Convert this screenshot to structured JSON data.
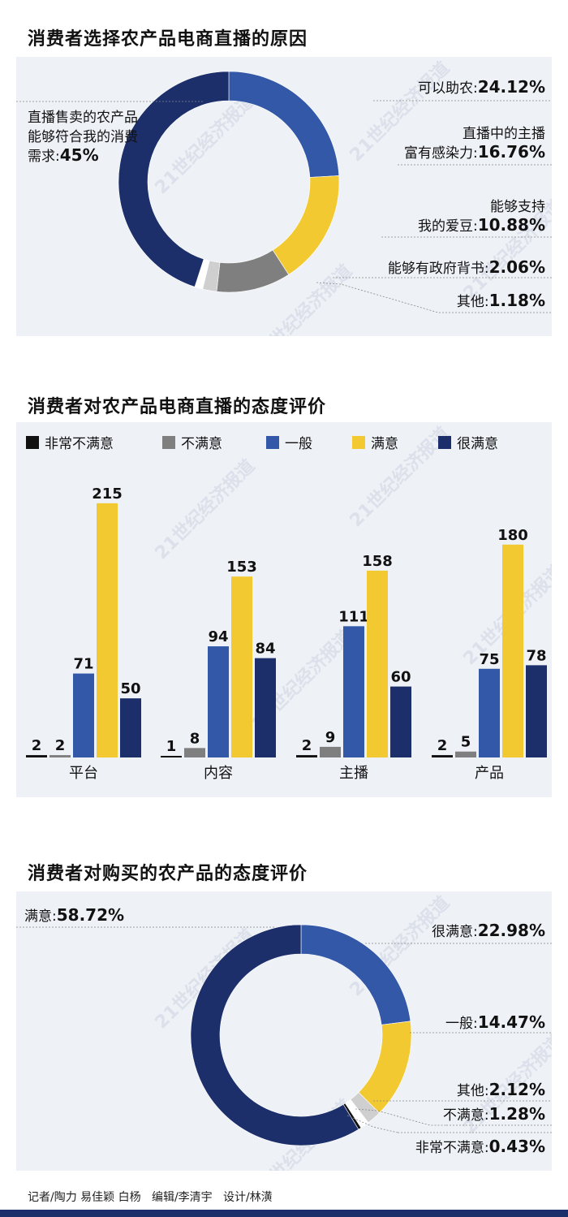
{
  "colors": {
    "very_dissatisfied": "#111111",
    "dissatisfied": "#7f7f7f",
    "average": "#3358a8",
    "satisfied": "#f2c930",
    "very_satisfied": "#1c2f6b",
    "light_gray": "#cfcfcf",
    "panel": "#eef1f6"
  },
  "watermark": "21世纪经济报道",
  "chart_data": [
    {
      "type": "pie",
      "title": "消费者选择农产品电商直播的原因",
      "slices": [
        {
          "label_lines": [
            "可以助农:"
          ],
          "pct_text": "24.12%",
          "value": 24.12,
          "color": "#3358a8"
        },
        {
          "label_lines": [
            "直播中的主播",
            "富有感染力:"
          ],
          "pct_text": "16.76%",
          "value": 16.76,
          "color": "#f2c930"
        },
        {
          "label_lines": [
            "能够支持",
            "我的爱豆:"
          ],
          "pct_text": "10.88%",
          "value": 10.88,
          "color": "#7f7f7f"
        },
        {
          "label_lines": [
            "能够有政府背书:"
          ],
          "pct_text": "2.06%",
          "value": 2.06,
          "color": "#cfcfcf"
        },
        {
          "label_lines": [
            "其他:"
          ],
          "pct_text": "1.18%",
          "value": 1.18,
          "color": "#ffffff"
        },
        {
          "label_lines": [
            "直播售卖的农产品",
            "能够符合我的消费",
            "需求:"
          ],
          "pct_text": "45%",
          "value": 45,
          "color": "#1c2f6b"
        }
      ]
    },
    {
      "type": "bar",
      "title": "消费者对农产品电商直播的态度评价",
      "categories": [
        "平台",
        "内容",
        "主播",
        "产品"
      ],
      "ylim": [
        0,
        230
      ],
      "series": [
        {
          "name": "非常不满意",
          "color": "#111111",
          "values": [
            2,
            1,
            2,
            2
          ]
        },
        {
          "name": "不满意",
          "color": "#7f7f7f",
          "values": [
            2,
            8,
            9,
            5
          ]
        },
        {
          "name": "一般",
          "color": "#3358a8",
          "values": [
            71,
            94,
            111,
            75
          ]
        },
        {
          "name": "满意",
          "color": "#f2c930",
          "values": [
            215,
            153,
            158,
            180
          ]
        },
        {
          "name": "很满意",
          "color": "#1c2f6b",
          "values": [
            50,
            84,
            60,
            78
          ]
        }
      ]
    },
    {
      "type": "pie",
      "title": "消费者对购买的农产品的态度评价",
      "slices": [
        {
          "label_lines": [
            "很满意:"
          ],
          "pct_text": "22.98%",
          "value": 22.98,
          "color": "#3358a8"
        },
        {
          "label_lines": [
            "一般:"
          ],
          "pct_text": "14.47%",
          "value": 14.47,
          "color": "#f2c930"
        },
        {
          "label_lines": [
            "其他:"
          ],
          "pct_text": "2.12%",
          "value": 2.12,
          "color": "#cfcfcf"
        },
        {
          "label_lines": [
            "不满意:"
          ],
          "pct_text": "1.28%",
          "value": 1.28,
          "color": "#ffffff"
        },
        {
          "label_lines": [
            "非常不满意:"
          ],
          "pct_text": "0.43%",
          "value": 0.43,
          "color": "#111111"
        },
        {
          "label_lines": [
            "满意:"
          ],
          "pct_text": "58.72%",
          "value": 58.72,
          "color": "#1c2f6b"
        }
      ]
    }
  ],
  "credits": "记者/陶力 易佳颖 白杨   编辑/李清宇   设计/林潢"
}
